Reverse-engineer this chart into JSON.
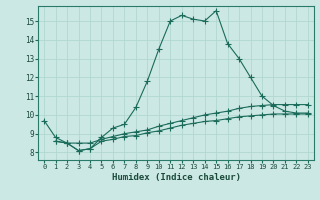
{
  "xlabel": "Humidex (Indice chaleur)",
  "bg_color": "#cce8e4",
  "grid_color": "#b0d8d0",
  "line_color": "#1a6b5a",
  "xlim": [
    -0.5,
    23.5
  ],
  "ylim": [
    7.6,
    15.8
  ],
  "xticks": [
    0,
    1,
    2,
    3,
    4,
    5,
    6,
    7,
    8,
    9,
    10,
    11,
    12,
    13,
    14,
    15,
    16,
    17,
    18,
    19,
    20,
    21,
    22,
    23
  ],
  "yticks": [
    8,
    9,
    10,
    11,
    12,
    13,
    14,
    15
  ],
  "line1_x": [
    0,
    1,
    2,
    3,
    4,
    5,
    6,
    7,
    8,
    9,
    10,
    11,
    12,
    13,
    14,
    15,
    16,
    17,
    18,
    19,
    20,
    21,
    22,
    23
  ],
  "line1_y": [
    9.7,
    8.8,
    8.5,
    8.1,
    8.2,
    8.8,
    9.3,
    9.5,
    10.4,
    11.8,
    13.5,
    15.0,
    15.3,
    15.1,
    15.0,
    15.55,
    13.8,
    13.0,
    12.0,
    11.0,
    10.5,
    10.2,
    10.1,
    10.1
  ],
  "line2_x": [
    1,
    2,
    3,
    4,
    5,
    6,
    7,
    8,
    9,
    10,
    11,
    12,
    13,
    14,
    15,
    16,
    17,
    18,
    19,
    20,
    21,
    22,
    23
  ],
  "line2_y": [
    8.6,
    8.5,
    8.5,
    8.5,
    8.7,
    8.85,
    9.0,
    9.1,
    9.2,
    9.4,
    9.55,
    9.7,
    9.85,
    10.0,
    10.1,
    10.2,
    10.35,
    10.45,
    10.5,
    10.55,
    10.55,
    10.55,
    10.55
  ],
  "line3_x": [
    1,
    2,
    3,
    4,
    5,
    6,
    7,
    8,
    9,
    10,
    11,
    12,
    13,
    14,
    15,
    16,
    17,
    18,
    19,
    20,
    21,
    22,
    23
  ],
  "line3_y": [
    8.6,
    8.5,
    8.1,
    8.2,
    8.6,
    8.7,
    8.85,
    8.9,
    9.05,
    9.15,
    9.3,
    9.45,
    9.55,
    9.65,
    9.7,
    9.8,
    9.9,
    9.95,
    10.0,
    10.05,
    10.05,
    10.05,
    10.05
  ]
}
